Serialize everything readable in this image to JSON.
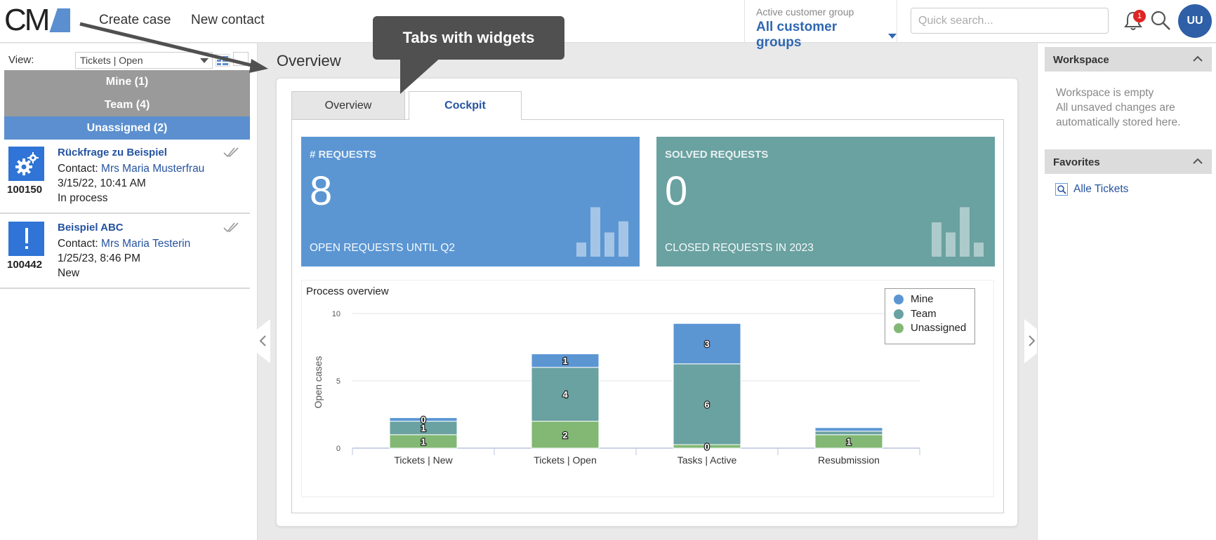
{
  "header": {
    "logo_text": "CM",
    "nav": [
      "Create case",
      "New contact"
    ],
    "active_group_label": "Active customer group",
    "active_group_value": "All customer groups",
    "search_placeholder": "Quick search...",
    "notification_count": "1",
    "avatar_initials": "UU"
  },
  "sidebar": {
    "view_label": "View:",
    "view_value": "Tickets | Open",
    "groups": [
      "Mine (1)",
      "Team (4)",
      "Unassigned (2)"
    ],
    "tickets": [
      {
        "number": "100150",
        "title": "Rückfrage zu Beispiel",
        "contact_label": "Contact: ",
        "contact": "Mrs Maria Musterfrau",
        "date": "3/15/22, 10:41 AM",
        "status": "In process"
      },
      {
        "number": "100442",
        "title": "Beispiel ABC",
        "contact_label": "Contact: ",
        "contact": "Mrs Maria Testerin",
        "date": "1/25/23, 8:46 PM",
        "status": "New"
      }
    ]
  },
  "main": {
    "title": "Overview",
    "tabs": [
      "Overview",
      "Cockpit"
    ],
    "kpis": [
      {
        "label": "# REQUESTS",
        "value": "8",
        "sub": "OPEN REQUESTS UNTIL Q2",
        "spark": [
          0.28,
          0.98,
          0.48,
          0.7
        ]
      },
      {
        "label": "SOLVED REQUESTS",
        "value": "0",
        "sub": "CLOSED REQUESTS IN 2023",
        "spark": [
          0.68,
          0.48,
          0.98,
          0.28
        ]
      }
    ]
  },
  "chart_data": {
    "type": "bar",
    "stacked": true,
    "title": "Process overview",
    "xlabel": "",
    "ylabel": "Open cases",
    "ylim": [
      0,
      10
    ],
    "yticks": [
      0,
      5,
      10
    ],
    "categories": [
      "Tickets | New",
      "Tickets | Open",
      "Tasks | Active",
      "Resubmission"
    ],
    "series": [
      {
        "name": "Unassigned",
        "color": "#82b874",
        "values": [
          1,
          2,
          0,
          1
        ]
      },
      {
        "name": "Team",
        "color": "#6aa1a1",
        "values": [
          1,
          4,
          6,
          0
        ]
      },
      {
        "name": "Mine",
        "color": "#5b96d3",
        "values": [
          0,
          1,
          3,
          0
        ]
      }
    ],
    "legend": [
      "Mine",
      "Team",
      "Unassigned"
    ],
    "legend_colors": [
      "#5b96d3",
      "#6aa1a1",
      "#82b874"
    ]
  },
  "rightpane": {
    "workspace_title": "Workspace",
    "workspace_empty": "Workspace is empty",
    "workspace_note": "All unsaved changes are automatically stored here.",
    "favorites_title": "Favorites",
    "favorite_link": "Alle Tickets"
  },
  "annotation": {
    "callout": "Tabs with widgets"
  }
}
